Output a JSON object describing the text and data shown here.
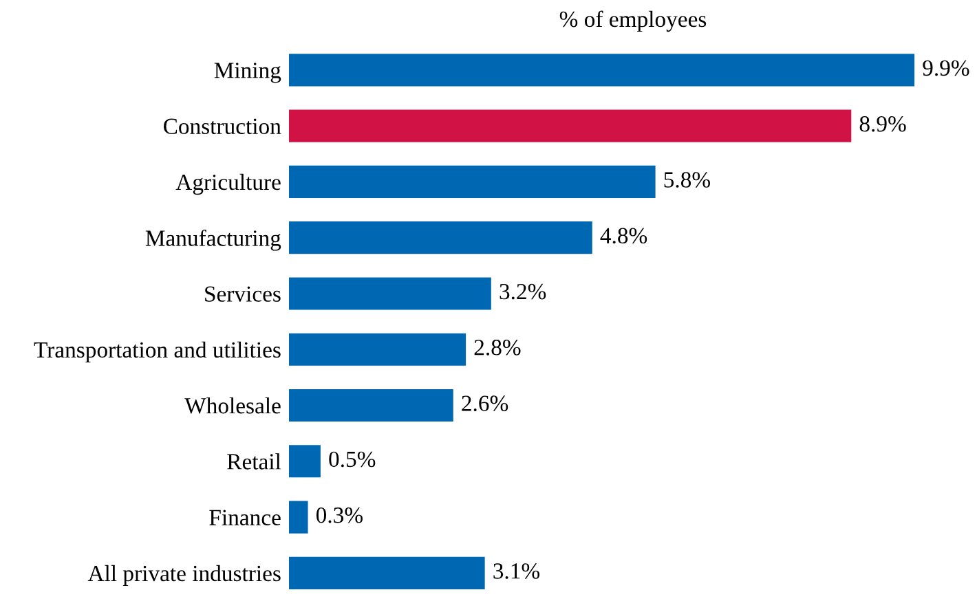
{
  "chart_data": {
    "type": "bar",
    "orientation": "horizontal",
    "title": "% of employees",
    "categories": [
      "Mining",
      "Construction",
      "Agriculture",
      "Manufacturing",
      "Services",
      "Transportation and utilities",
      "Wholesale",
      "Retail",
      "Finance",
      "All private industries"
    ],
    "values": [
      9.9,
      8.9,
      5.8,
      4.8,
      3.2,
      2.8,
      2.6,
      0.5,
      0.3,
      3.1
    ],
    "colors": [
      "#0068b3",
      "#d01245",
      "#0068b3",
      "#0068b3",
      "#0068b3",
      "#0068b3",
      "#0068b3",
      "#0068b3",
      "#0068b3",
      "#0068b3"
    ],
    "value_labels": [
      "9.9%",
      "8.9%",
      "5.8%",
      "4.8%",
      "3.2%",
      "2.8%",
      "2.6%",
      "0.5%",
      "0.3%",
      "3.1%"
    ]
  }
}
